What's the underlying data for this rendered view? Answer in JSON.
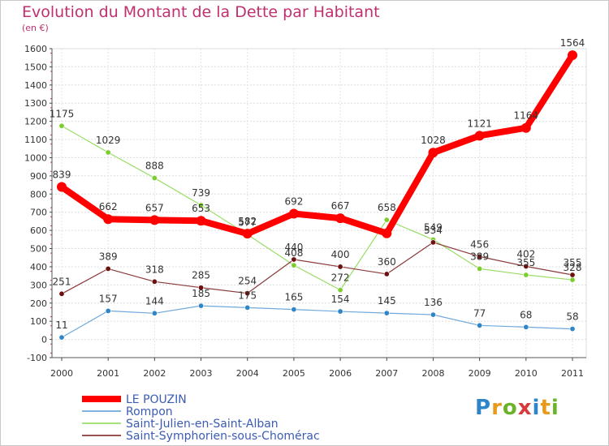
{
  "chart_data": {
    "type": "line",
    "title": "Evolution du Montant de la Dette par Habitant",
    "ylabel": "(en €)",
    "xlabel": "",
    "x": [
      "2000",
      "2001",
      "2002",
      "2003",
      "2004",
      "2005",
      "2006",
      "2007",
      "2008",
      "2009",
      "2010",
      "2011"
    ],
    "ylim": [
      -100,
      1600
    ],
    "yticks": [
      -100,
      0,
      100,
      200,
      300,
      400,
      500,
      600,
      700,
      800,
      900,
      1000,
      1100,
      1200,
      1300,
      1400,
      1500,
      1600
    ],
    "grid": true,
    "legend_position": "bottom-left",
    "series": [
      {
        "name": "LE POUZIN",
        "color": "#ff0000",
        "values": [
          839,
          662,
          657,
          653,
          582,
          692,
          667,
          584,
          1028,
          1121,
          1164,
          1564
        ],
        "labels": [
          "839",
          "662",
          "657",
          "653",
          "582",
          "692",
          "667",
          "",
          "1028",
          "1121",
          "1164",
          "1564"
        ]
      },
      {
        "name": "Rompon",
        "color": "#6fa8dc",
        "values": [
          11,
          157,
          144,
          185,
          175,
          165,
          154,
          145,
          136,
          77,
          68,
          58
        ],
        "labels": [
          "11",
          "157",
          "144",
          "185",
          "175",
          "165",
          "154",
          "145",
          "136",
          "77",
          "68",
          "58"
        ]
      },
      {
        "name": "Saint-Julien-en-Saint-Alban",
        "color": "#99dd66",
        "values": [
          1175,
          1029,
          888,
          739,
          577,
          408,
          272,
          658,
          549,
          389,
          355,
          328
        ],
        "labels": [
          "1175",
          "1029",
          "888",
          "739",
          "577",
          "408",
          "272",
          "658",
          "549",
          "389",
          "355",
          "328"
        ]
      },
      {
        "name": "Saint-Symphorien-sous-Chomérac",
        "color": "#8b3a3a",
        "values": [
          251,
          389,
          318,
          285,
          254,
          440,
          400,
          360,
          534,
          456,
          402,
          355
        ],
        "labels": [
          "251",
          "389",
          "318",
          "285",
          "254",
          "440",
          "400",
          "360",
          "534",
          "456",
          "402",
          "355"
        ]
      }
    ]
  },
  "logo": {
    "text": "Proxiti"
  }
}
